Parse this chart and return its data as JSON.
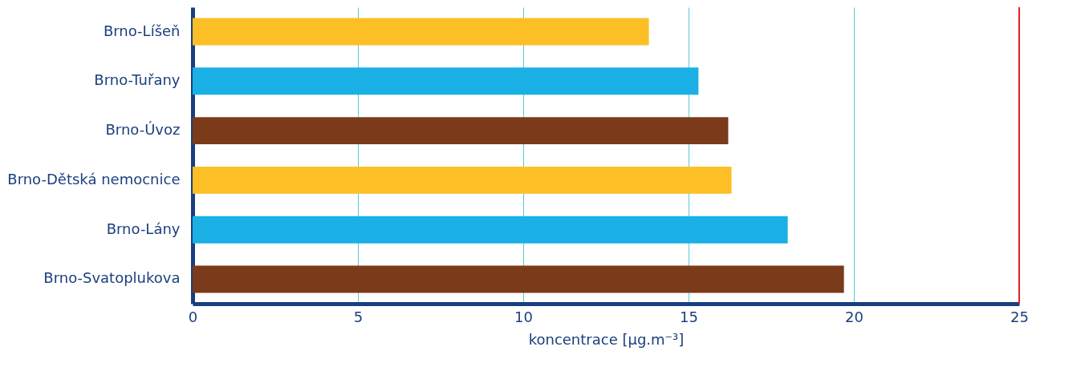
{
  "chart_data": {
    "type": "bar",
    "orientation": "horizontal",
    "xlabel": "koncentrace [µg.m⁻³]",
    "categories": [
      "Brno-Líšeň",
      "Brno-Tuřany",
      "Brno-Úvoz",
      "Brno-Dětská nemocnice",
      "Brno-Lány",
      "Brno-Svatoplukova"
    ],
    "values": [
      13.8,
      15.3,
      16.2,
      16.3,
      18.0,
      19.7
    ],
    "colors": [
      "#fdbf26",
      "#1ab0e6",
      "#7b3a1a",
      "#fdbf26",
      "#1ab0e6",
      "#7b3a1a"
    ],
    "xlim": [
      0,
      25
    ],
    "xticks": [
      0,
      5,
      10,
      15,
      20,
      25
    ],
    "grid": "x",
    "ref_lines": [
      {
        "axis": "x",
        "value": 25,
        "color": "#e02020"
      }
    ]
  }
}
